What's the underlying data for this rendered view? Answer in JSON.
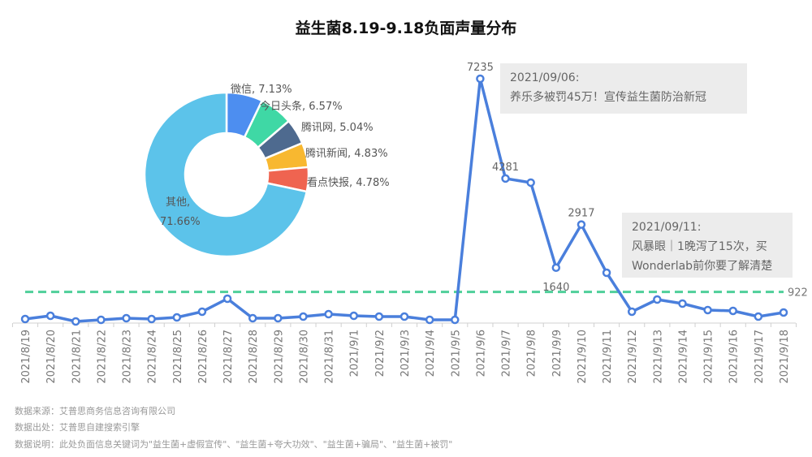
{
  "title": "益生菌8.19-9.18负面声量分布",
  "chart_data": [
    {
      "type": "line",
      "title": "益生菌8.19-9.18负面声量分布",
      "xlabel": "",
      "ylabel": "",
      "grid": false,
      "categories": [
        "2021/8/19",
        "2021/8/20",
        "2021/8/21",
        "2021/8/22",
        "2021/8/23",
        "2021/8/24",
        "2021/8/25",
        "2021/8/26",
        "2021/8/27",
        "2021/8/28",
        "2021/8/29",
        "2021/8/30",
        "2021/8/31",
        "2021/9/1",
        "2021/9/2",
        "2021/9/3",
        "2021/9/4",
        "2021/9/5",
        "2021/9/6",
        "2021/9/7",
        "2021/9/8",
        "2021/9/9",
        "2021/9/10",
        "2021/9/11",
        "2021/9/12",
        "2021/9/13",
        "2021/9/14",
        "2021/9/15",
        "2021/9/16",
        "2021/9/17",
        "2021/9/18"
      ],
      "series": [
        {
          "name": "负面声量",
          "color": "#4a7fdc",
          "values": [
            120,
            216,
            48,
            96,
            144,
            120,
            168,
            337,
            721,
            144,
            144,
            192,
            264,
            216,
            192,
            192,
            96,
            96,
            7235,
            4281,
            4159,
            1640,
            2917,
            1490,
            337,
            697,
            577,
            385,
            361,
            192,
            313
          ]
        }
      ],
      "data_labels": [
        {
          "index": 18,
          "text": "7235"
        },
        {
          "index": 19,
          "text": "4281"
        },
        {
          "index": 21,
          "text": "1640"
        },
        {
          "index": 22,
          "text": "2917"
        }
      ],
      "reference_line": {
        "value": 922,
        "label": "922",
        "style": "dashed",
        "color": "#4fcf9a"
      },
      "annotations": [
        {
          "date": "2021/09/06:",
          "text": "养乐多被罚45万！宣传益生菌防治新冠"
        },
        {
          "date": "2021/09/11:",
          "text": "风暴眼｜1晚泻了15次，买Wonderlab前你要了解清楚",
          "lines": [
            "风暴眼｜1晚泻了15次，买",
            "Wonderlab前你要了解清楚"
          ]
        }
      ],
      "ylim": [
        0,
        7500
      ]
    },
    {
      "type": "pie",
      "donut": true,
      "labels": [
        "微信",
        "今日头条",
        "腾讯网",
        "腾讯新闻",
        "看点快报",
        "其他"
      ],
      "values": [
        7.13,
        6.57,
        5.04,
        4.83,
        4.78,
        71.66
      ],
      "colors": [
        "#4d8ef0",
        "#3fd8a5",
        "#4e6a8f",
        "#f8b830",
        "#ef6450",
        "#5cc3ea"
      ],
      "label_texts": [
        "微信, 7.13%",
        "今日头条, 6.57%",
        "腾讯网, 5.04%",
        "腾讯新闻, 4.83%",
        "看点快报, 4.78%",
        "其他,",
        "71.66%"
      ]
    }
  ],
  "notes": {
    "n1": {
      "date": "2021/09/06:",
      "line1": "养乐多被罚45万！宣传益生菌防治新冠"
    },
    "n2": {
      "date": "2021/09/11:",
      "line1": "风暴眼｜1晚泻了15次，买",
      "line2": "Wonderlab前你要了解清楚"
    }
  },
  "footer": {
    "source": "数据来源：艾普思商务信息咨询有限公司",
    "origin": "数据出处：艾普思自建搜索引擎",
    "desc": "数据说明：此处负面信息关键词为\"益生菌+虚假宣传\"、\"益生菌+夸大功效\"、\"益生菌+骗局\"、\"益生菌+被罚\""
  }
}
